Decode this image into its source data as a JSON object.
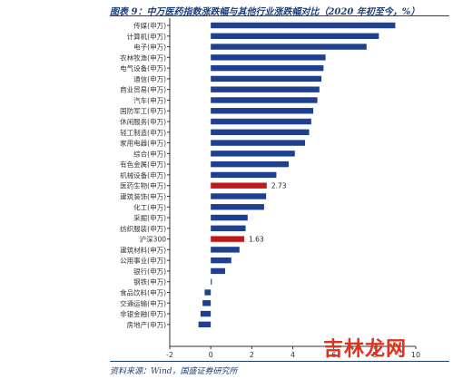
{
  "header": {
    "title": "图表 9：中万医药指数涨跌幅与其他行业涨跌幅对比（2020 年初至今，%）"
  },
  "footer": {
    "source": "资料来源：Wind，国盛证券研究所"
  },
  "watermark": {
    "text": "吉林龙网"
  },
  "chart_data": {
    "type": "bar",
    "orientation": "horizontal",
    "title": "图表 9：中万医药指数涨跌幅与其他行业涨跌幅对比（2020 年初至今，%）",
    "categories": [
      "传媒(申万)",
      "计算机(申万)",
      "电子(申万)",
      "农林牧渔(申万)",
      "电气设备(申万)",
      "通信(申万)",
      "商业贸易(申万)",
      "汽车(申万)",
      "国防军工(申万)",
      "休闲服务(申万)",
      "轻工制造(申万)",
      "家用电器(申万)",
      "综合(申万)",
      "有色金属(申万)",
      "机械设备(申万)",
      "医药生物(申万)",
      "建筑装饰(申万)",
      "化工(申万)",
      "采掘(申万)",
      "纺织服装(申万)",
      "沪深300",
      "建筑材料(申万)",
      "公用事业(申万)",
      "银行(申万)",
      "钢铁(申万)",
      "食品饮料(申万)",
      "交通运输(申万)",
      "非银金融(申万)",
      "房地产(申万)"
    ],
    "values": [
      9.0,
      8.2,
      7.6,
      5.6,
      5.5,
      5.4,
      5.3,
      5.2,
      5.0,
      4.9,
      4.8,
      4.6,
      4.1,
      3.8,
      3.2,
      2.73,
      2.7,
      2.6,
      1.8,
      1.7,
      1.63,
      1.4,
      1.0,
      0.7,
      0.05,
      -0.3,
      -0.4,
      -0.5,
      -0.6
    ],
    "highlight": [
      "医药生物(申万)",
      "沪深300"
    ],
    "data_labels": {
      "医药生物(申万)": "2.73",
      "沪深300": "1.63"
    },
    "xlim": [
      -2,
      10
    ],
    "xticks": [
      -2,
      0,
      2,
      4,
      6,
      8,
      10
    ],
    "grid": false,
    "colors": {
      "bar": "#1f3f8f",
      "highlight": "#c0191c",
      "axis": "#333333"
    }
  }
}
